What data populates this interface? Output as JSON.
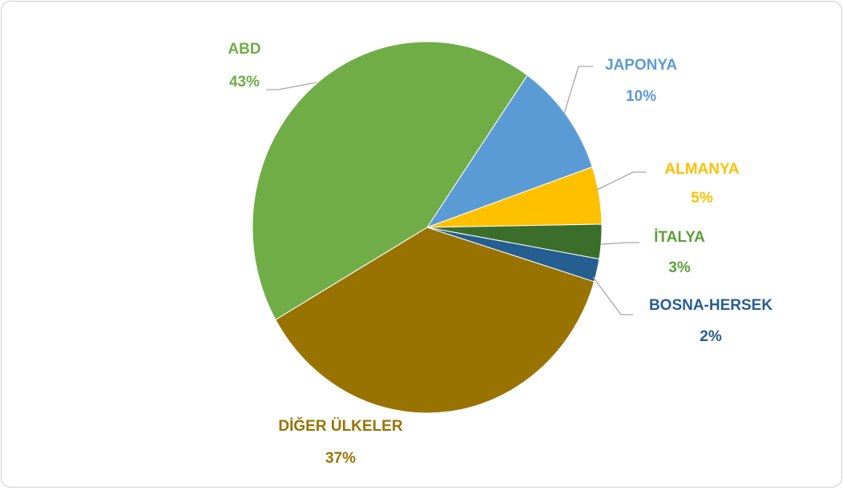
{
  "chart_data": {
    "type": "pie",
    "categories": [
      "JAPONYA",
      "ALMANYA",
      "İTALYA",
      "BOSNA-HERSEK",
      "DİĞER ÜLKELER",
      "ABD"
    ],
    "values": [
      10,
      5,
      3,
      2,
      37,
      43
    ],
    "value_labels": [
      "10%",
      "5%",
      "3%",
      "2%",
      "37%",
      "43%"
    ],
    "colors": [
      "#5b9bd5",
      "#ffc000",
      "#3b6e2b",
      "#255e91",
      "#997300",
      "#70ad47"
    ],
    "label_colors": [
      "#5b9bd5",
      "#ffc000",
      "#5e9e3c",
      "#255e91",
      "#997300",
      "#70ad47"
    ]
  }
}
